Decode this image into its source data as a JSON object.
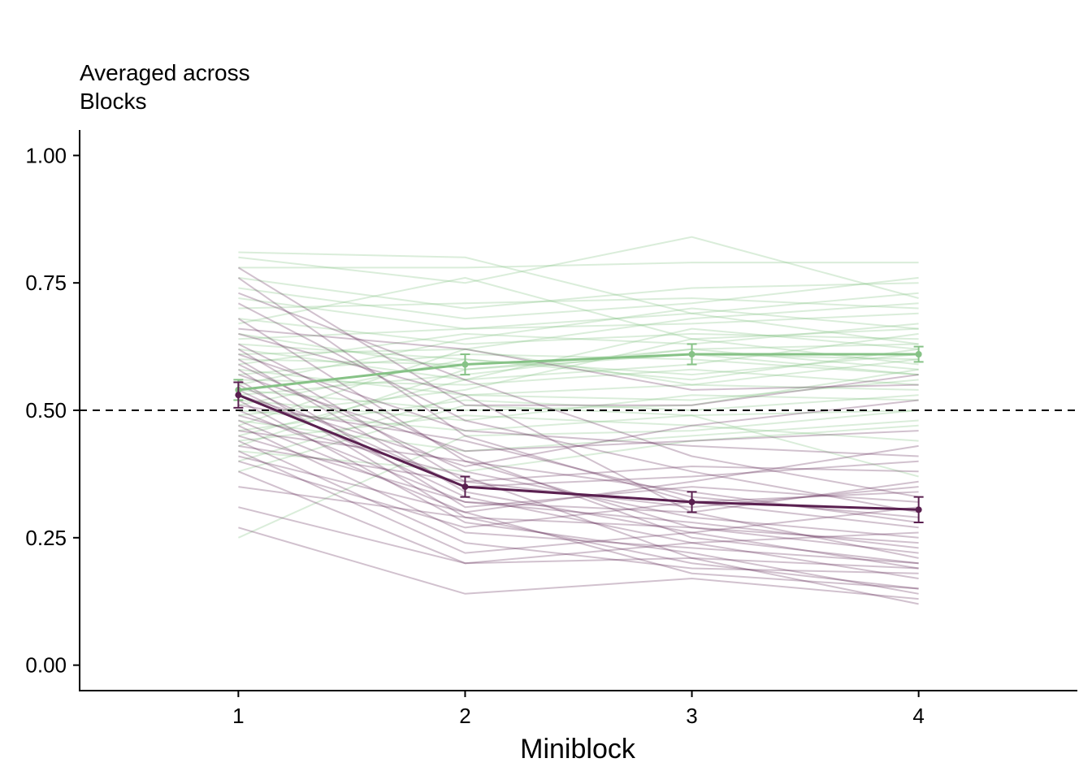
{
  "chart_data": {
    "type": "line",
    "title_lines": [
      "Averaged across",
      "Blocks"
    ],
    "xlabel": "Miniblock",
    "ylabel": "",
    "x": [
      1,
      2,
      3,
      4
    ],
    "x_ticks": [
      "1",
      "2",
      "3",
      "4"
    ],
    "y_ticks": [
      "0.00",
      "0.25",
      "0.50",
      "0.75",
      "1.00"
    ],
    "xlim": [
      0.3,
      4.7
    ],
    "ylim": [
      -0.05,
      1.05
    ],
    "grid": false,
    "reference_line": {
      "y": 0.5,
      "style": "dashed",
      "color": "#000000"
    },
    "colors": {
      "green": "#86c286",
      "purple": "#5a2050"
    },
    "series": [
      {
        "color": "green",
        "values": [
          0.54,
          0.59,
          0.61,
          0.61
        ],
        "errors": [
          0.02,
          0.02,
          0.02,
          0.015
        ]
      },
      {
        "color": "purple",
        "values": [
          0.53,
          0.35,
          0.32,
          0.305
        ],
        "errors": [
          0.025,
          0.02,
          0.02,
          0.025
        ]
      }
    ],
    "individual_lines": {
      "green": [
        [
          0.81,
          0.8,
          0.69,
          0.63
        ],
        [
          0.8,
          0.75,
          0.84,
          0.72
        ],
        [
          0.78,
          0.78,
          0.79,
          0.79
        ],
        [
          0.76,
          0.7,
          0.74,
          0.75
        ],
        [
          0.74,
          0.68,
          0.71,
          0.76
        ],
        [
          0.72,
          0.66,
          0.67,
          0.69
        ],
        [
          0.7,
          0.71,
          0.72,
          0.7
        ],
        [
          0.68,
          0.63,
          0.65,
          0.64
        ],
        [
          0.67,
          0.76,
          0.64,
          0.66
        ],
        [
          0.65,
          0.58,
          0.62,
          0.58
        ],
        [
          0.64,
          0.66,
          0.69,
          0.73
        ],
        [
          0.63,
          0.6,
          0.56,
          0.62
        ],
        [
          0.62,
          0.56,
          0.66,
          0.62
        ],
        [
          0.61,
          0.62,
          0.55,
          0.54
        ],
        [
          0.6,
          0.59,
          0.61,
          0.6
        ],
        [
          0.59,
          0.65,
          0.63,
          0.67
        ],
        [
          0.58,
          0.53,
          0.52,
          0.56
        ],
        [
          0.57,
          0.61,
          0.6,
          0.57
        ],
        [
          0.56,
          0.55,
          0.58,
          0.55
        ],
        [
          0.55,
          0.64,
          0.7,
          0.66
        ],
        [
          0.54,
          0.5,
          0.51,
          0.58
        ],
        [
          0.53,
          0.57,
          0.62,
          0.63
        ],
        [
          0.52,
          0.48,
          0.53,
          0.52
        ],
        [
          0.51,
          0.6,
          0.57,
          0.61
        ],
        [
          0.5,
          0.46,
          0.49,
          0.5
        ],
        [
          0.49,
          0.54,
          0.64,
          0.59
        ],
        [
          0.48,
          0.42,
          0.45,
          0.48
        ],
        [
          0.47,
          0.62,
          0.68,
          0.71
        ],
        [
          0.46,
          0.52,
          0.5,
          0.53
        ],
        [
          0.45,
          0.56,
          0.59,
          0.65
        ],
        [
          0.44,
          0.49,
          0.47,
          0.44
        ],
        [
          0.43,
          0.58,
          0.61,
          0.57
        ],
        [
          0.42,
          0.38,
          0.44,
          0.47
        ],
        [
          0.4,
          0.53,
          0.55,
          0.6
        ],
        [
          0.38,
          0.51,
          0.49,
          0.37
        ],
        [
          0.25,
          0.45,
          0.46,
          0.5
        ]
      ],
      "purple": [
        [
          0.78,
          0.51,
          0.51,
          0.57
        ],
        [
          0.76,
          0.45,
          0.32,
          0.27
        ],
        [
          0.73,
          0.56,
          0.41,
          0.33
        ],
        [
          0.71,
          0.48,
          0.38,
          0.3
        ],
        [
          0.68,
          0.4,
          0.34,
          0.28
        ],
        [
          0.66,
          0.62,
          0.54,
          0.55
        ],
        [
          0.65,
          0.53,
          0.3,
          0.21
        ],
        [
          0.63,
          0.41,
          0.25,
          0.2
        ],
        [
          0.62,
          0.36,
          0.31,
          0.35
        ],
        [
          0.61,
          0.46,
          0.43,
          0.41
        ],
        [
          0.6,
          0.34,
          0.26,
          0.19
        ],
        [
          0.59,
          0.38,
          0.29,
          0.25
        ],
        [
          0.58,
          0.31,
          0.35,
          0.32
        ],
        [
          0.57,
          0.42,
          0.44,
          0.46
        ],
        [
          0.56,
          0.29,
          0.2,
          0.15
        ],
        [
          0.55,
          0.35,
          0.37,
          0.4
        ],
        [
          0.54,
          0.33,
          0.24,
          0.17
        ],
        [
          0.53,
          0.39,
          0.47,
          0.52
        ],
        [
          0.52,
          0.28,
          0.22,
          0.14
        ],
        [
          0.51,
          0.44,
          0.33,
          0.29
        ],
        [
          0.5,
          0.32,
          0.28,
          0.23
        ],
        [
          0.49,
          0.37,
          0.21,
          0.12
        ],
        [
          0.48,
          0.3,
          0.36,
          0.43
        ],
        [
          0.47,
          0.26,
          0.23,
          0.2
        ],
        [
          0.46,
          0.4,
          0.27,
          0.22
        ],
        [
          0.45,
          0.32,
          0.3,
          0.36
        ],
        [
          0.44,
          0.24,
          0.19,
          0.18
        ],
        [
          0.43,
          0.36,
          0.39,
          0.38
        ],
        [
          0.42,
          0.22,
          0.26,
          0.31
        ],
        [
          0.41,
          0.3,
          0.18,
          0.15
        ],
        [
          0.4,
          0.27,
          0.32,
          0.34
        ],
        [
          0.38,
          0.2,
          0.24,
          0.26
        ],
        [
          0.35,
          0.29,
          0.27,
          0.24
        ],
        [
          0.31,
          0.2,
          0.21,
          0.19
        ],
        [
          0.27,
          0.14,
          0.17,
          0.13
        ]
      ]
    }
  }
}
